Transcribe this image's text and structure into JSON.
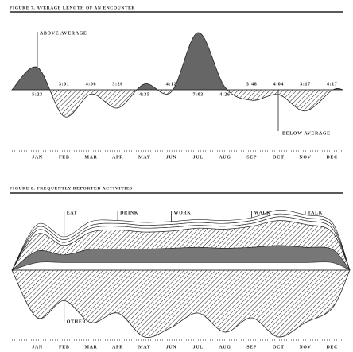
{
  "chart_data": [
    {
      "type": "line",
      "title": "FIGURE 7. AVERAGE LENGTH OF AN ENCOUNTER",
      "categories": [
        "JAN",
        "FEB",
        "MAR",
        "APR",
        "MAY",
        "JUN",
        "JUL",
        "AUG",
        "SEP",
        "OCT",
        "NOV",
        "DEC"
      ],
      "values": [
        5.38,
        3.02,
        4.1,
        3.43,
        4.58,
        4.2,
        7.05,
        4.43,
        3.8,
        4.07,
        3.28,
        4.28
      ],
      "value_labels": [
        "5:23",
        "3:01",
        "4:06",
        "3:26",
        "4:35",
        "4:12",
        "7:03",
        "4:26",
        "3:48",
        "4:04",
        "3:17",
        "4:17"
      ],
      "annotations": [
        "ABOVE AVERAGE",
        "BELOW AVERAGE"
      ],
      "colors": [
        "#666666",
        "#222222"
      ]
    },
    {
      "type": "stream",
      "title": "FIGURE 8. FREQUENTLY REPORTED ACTIVITIES",
      "categories": [
        "JAN",
        "FEB",
        "MAR",
        "APR",
        "MAY",
        "JUN",
        "JUL",
        "AUG",
        "SEP",
        "OCT",
        "NOV",
        "DEC"
      ],
      "series": [
        {
          "name": "OTHER",
          "color": "#222222",
          "values": [
            50,
            32,
            55,
            45,
            70,
            60,
            45,
            65,
            50,
            70,
            55,
            40
          ]
        },
        {
          "name": "EAT",
          "color": "#777777",
          "values": [
            12,
            8,
            14,
            14,
            14,
            15,
            16,
            15,
            16,
            18,
            16,
            14
          ]
        },
        {
          "name": "DRINK",
          "color": "#222222",
          "values": [
            18,
            10,
            18,
            20,
            18,
            18,
            20,
            20,
            22,
            26,
            24,
            18
          ]
        },
        {
          "name": "WORK",
          "color": "#ffffff",
          "values": [
            4,
            3,
            4,
            4,
            4,
            4,
            3,
            3,
            3,
            4,
            4,
            4
          ]
        },
        {
          "name": "WALK",
          "color": "#ffffff",
          "values": [
            3,
            3,
            3,
            3,
            3,
            3,
            3,
            3,
            3,
            3,
            3,
            3
          ]
        },
        {
          "name": "TALK",
          "color": "#ffffff",
          "values": [
            3,
            3,
            4,
            3,
            3,
            3,
            3,
            3,
            3,
            4,
            3,
            3
          ]
        }
      ]
    }
  ]
}
